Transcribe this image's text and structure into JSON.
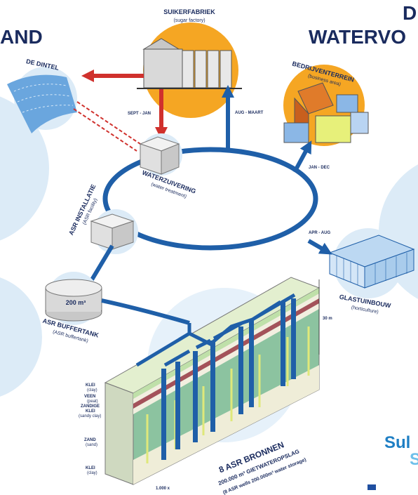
{
  "headings": {
    "left": "AND",
    "right_top": "D",
    "right": "WATERVO"
  },
  "nodes": [
    {
      "label": "SUIKERFABRIEK",
      "sublabel": "(sugar factory)"
    },
    {
      "label": "DE DINTEL"
    },
    {
      "label": "BEDRIJVENTERREIN",
      "sublabel": "(business area)"
    },
    {
      "label": "WATERZUIVERING",
      "sublabel": "(water treatment)"
    },
    {
      "label": "ASR INSTALLATIE",
      "sublabel": "(ASR facility)"
    },
    {
      "label": "GLASTUINBOUW",
      "sublabel": "(horticulture)"
    },
    {
      "label": "ASR BUFFERTANK",
      "sublabel": "(ASR buffertank)"
    }
  ],
  "periods": [
    "SEPT - JAN",
    "AUG - MAART",
    "JAN - DEC",
    "APR - AUG"
  ],
  "tank_volume": "200 m³",
  "depth": "30 m",
  "layers": [
    {
      "label": "KLEI",
      "sublabel": "(clay)"
    },
    {
      "label": "VEEN",
      "sublabel": "(peat)"
    },
    {
      "label": "ZANDIGE",
      "sublabel": "KLEI"
    },
    {
      "label": "(sandy clay)"
    },
    {
      "label": "ZAND",
      "sublabel": "(sand)"
    },
    {
      "label": "KLEI",
      "sublabel": "(clay)"
    }
  ],
  "wells": {
    "title": "8 ASR BRONNEN",
    "subtitle": "200.000 m³ GIETWATEROPSLAG",
    "note": "(8 ASR wells 200.000m³ water storage)"
  },
  "scale": "1.000 x",
  "logo": [
    "Sul",
    "S"
  ]
}
